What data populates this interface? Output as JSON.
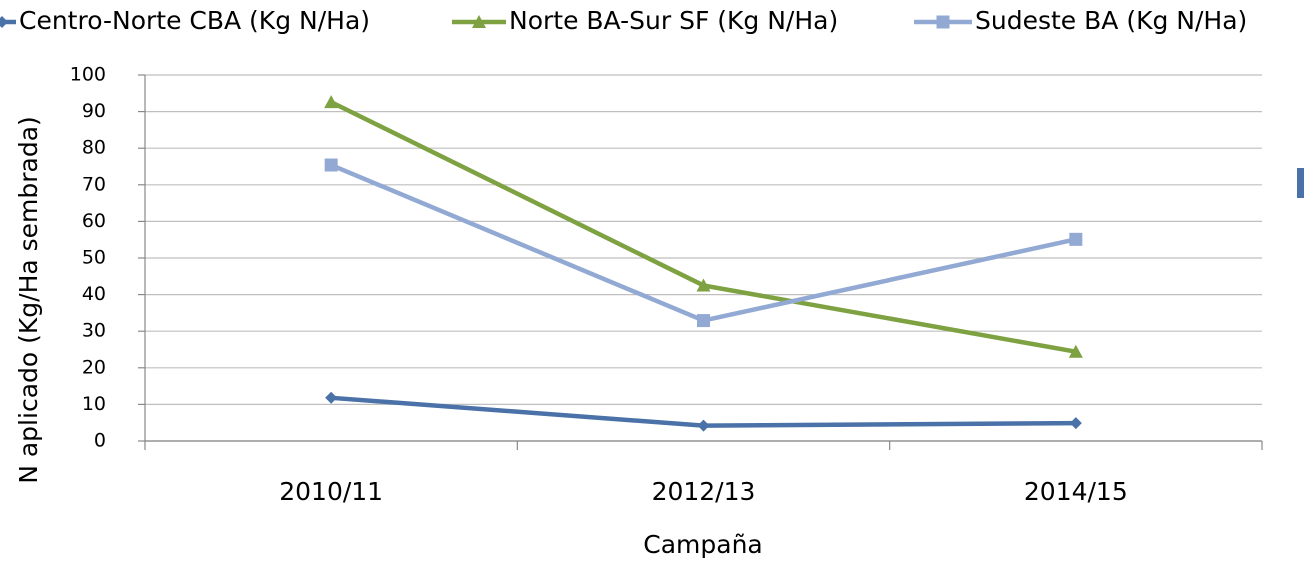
{
  "chart_data": {
    "type": "line",
    "x_label": "Campaña",
    "y_label": "N aplicado (Kg/Ha sembrada)",
    "categories": [
      "2010/11",
      "2012/13",
      "2014/15"
    ],
    "series": [
      {
        "name": "Centro-Norte CBA (Kg N/Ha)",
        "color": "#4a72a8",
        "marker": "diamond",
        "values": [
          11.8,
          4.2,
          4.9
        ]
      },
      {
        "name": "Norte BA-Sur SF (Kg N/Ha)",
        "color": "#7ea141",
        "marker": "triangle",
        "values": [
          92.6,
          42.5,
          24.4
        ]
      },
      {
        "name": "Sudeste BA (Kg N/Ha)",
        "color": "#92a9d4",
        "marker": "square",
        "values": [
          75.4,
          32.9,
          55.1
        ]
      }
    ],
    "ylim": [
      0,
      100
    ],
    "yticks": [
      0,
      10,
      20,
      30,
      40,
      50,
      60,
      70,
      80,
      90,
      100
    ],
    "grid": true,
    "legend": "top"
  }
}
